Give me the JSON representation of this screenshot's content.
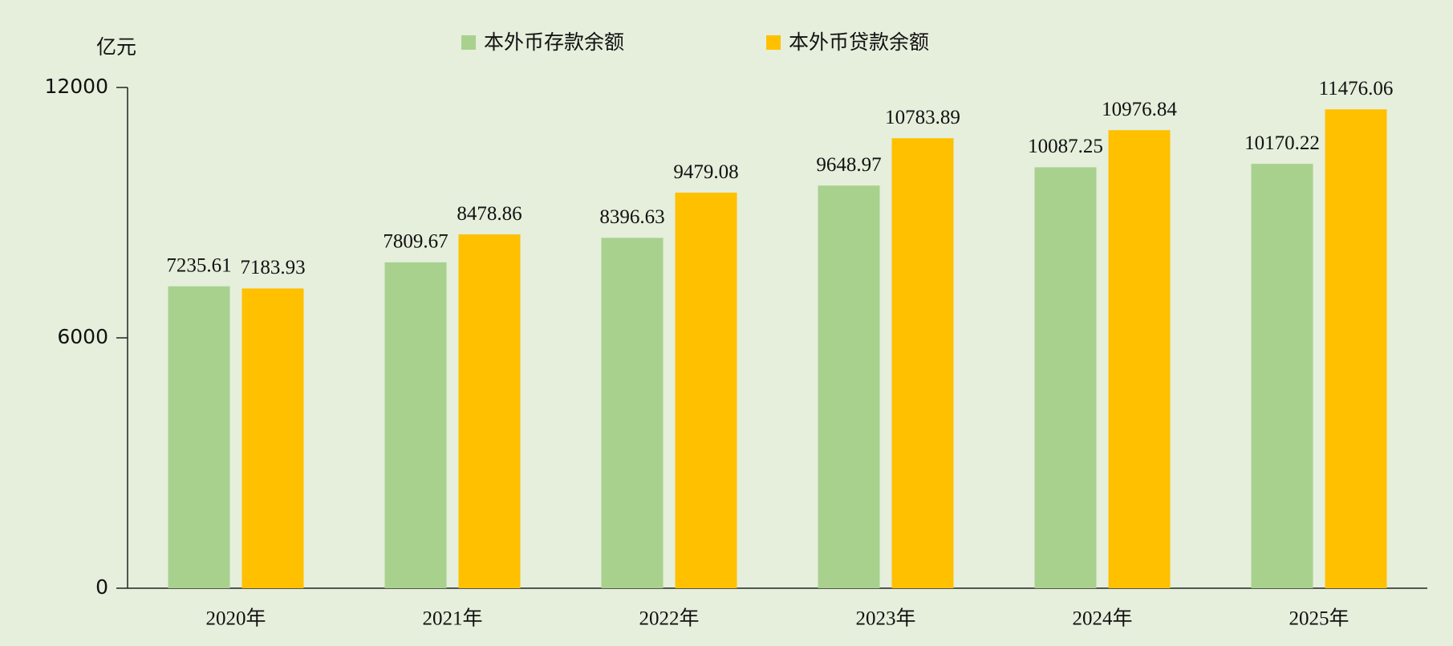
{
  "chart_data": {
    "type": "bar",
    "y_label": "亿元",
    "categories": [
      "2020年",
      "2021年",
      "2022年",
      "2023年",
      "2024年",
      "2025年"
    ],
    "series": [
      {
        "name": "本外币存款余额",
        "color": "#a9d18e",
        "values": [
          7235.61,
          7809.67,
          8396.63,
          9648.97,
          10087.25,
          10170.22
        ]
      },
      {
        "name": "本外币贷款余额",
        "color": "#ffc000",
        "values": [
          7183.93,
          8478.86,
          9479.08,
          10783.89,
          10976.84,
          11476.06
        ]
      }
    ],
    "ylim": [
      0,
      12000
    ],
    "yticks": [
      0,
      6000,
      12000
    ],
    "grid": false,
    "legend": "top"
  }
}
